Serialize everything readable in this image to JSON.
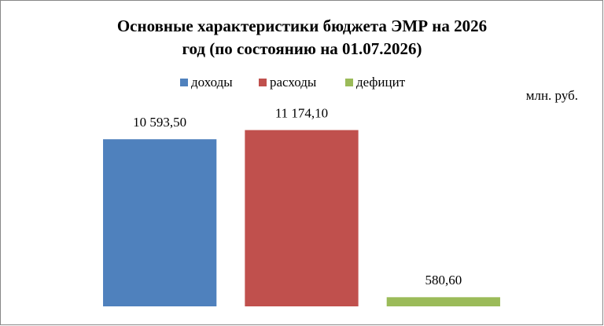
{
  "chart_data": {
    "type": "bar",
    "title": [
      "Основные характеристики  бюджета ЭМР на 2026",
      "год (по состоянию на 01.07.2026)"
    ],
    "unit_label": "млн. руб.",
    "categories": [
      null
    ],
    "series": [
      {
        "name": "доходы",
        "color": "#4f81bd",
        "values": [
          10593.5
        ],
        "value_labels": [
          "10 593,50"
        ]
      },
      {
        "name": "расходы",
        "color": "#c0504d",
        "values": [
          11174.1
        ],
        "value_labels": [
          "11 174,10"
        ]
      },
      {
        "name": "дефицит",
        "color": "#9bbb59",
        "values": [
          580.6
        ],
        "value_labels": [
          "580,60"
        ]
      }
    ],
    "ylim": [
      0,
      12000
    ],
    "legend": "top"
  }
}
